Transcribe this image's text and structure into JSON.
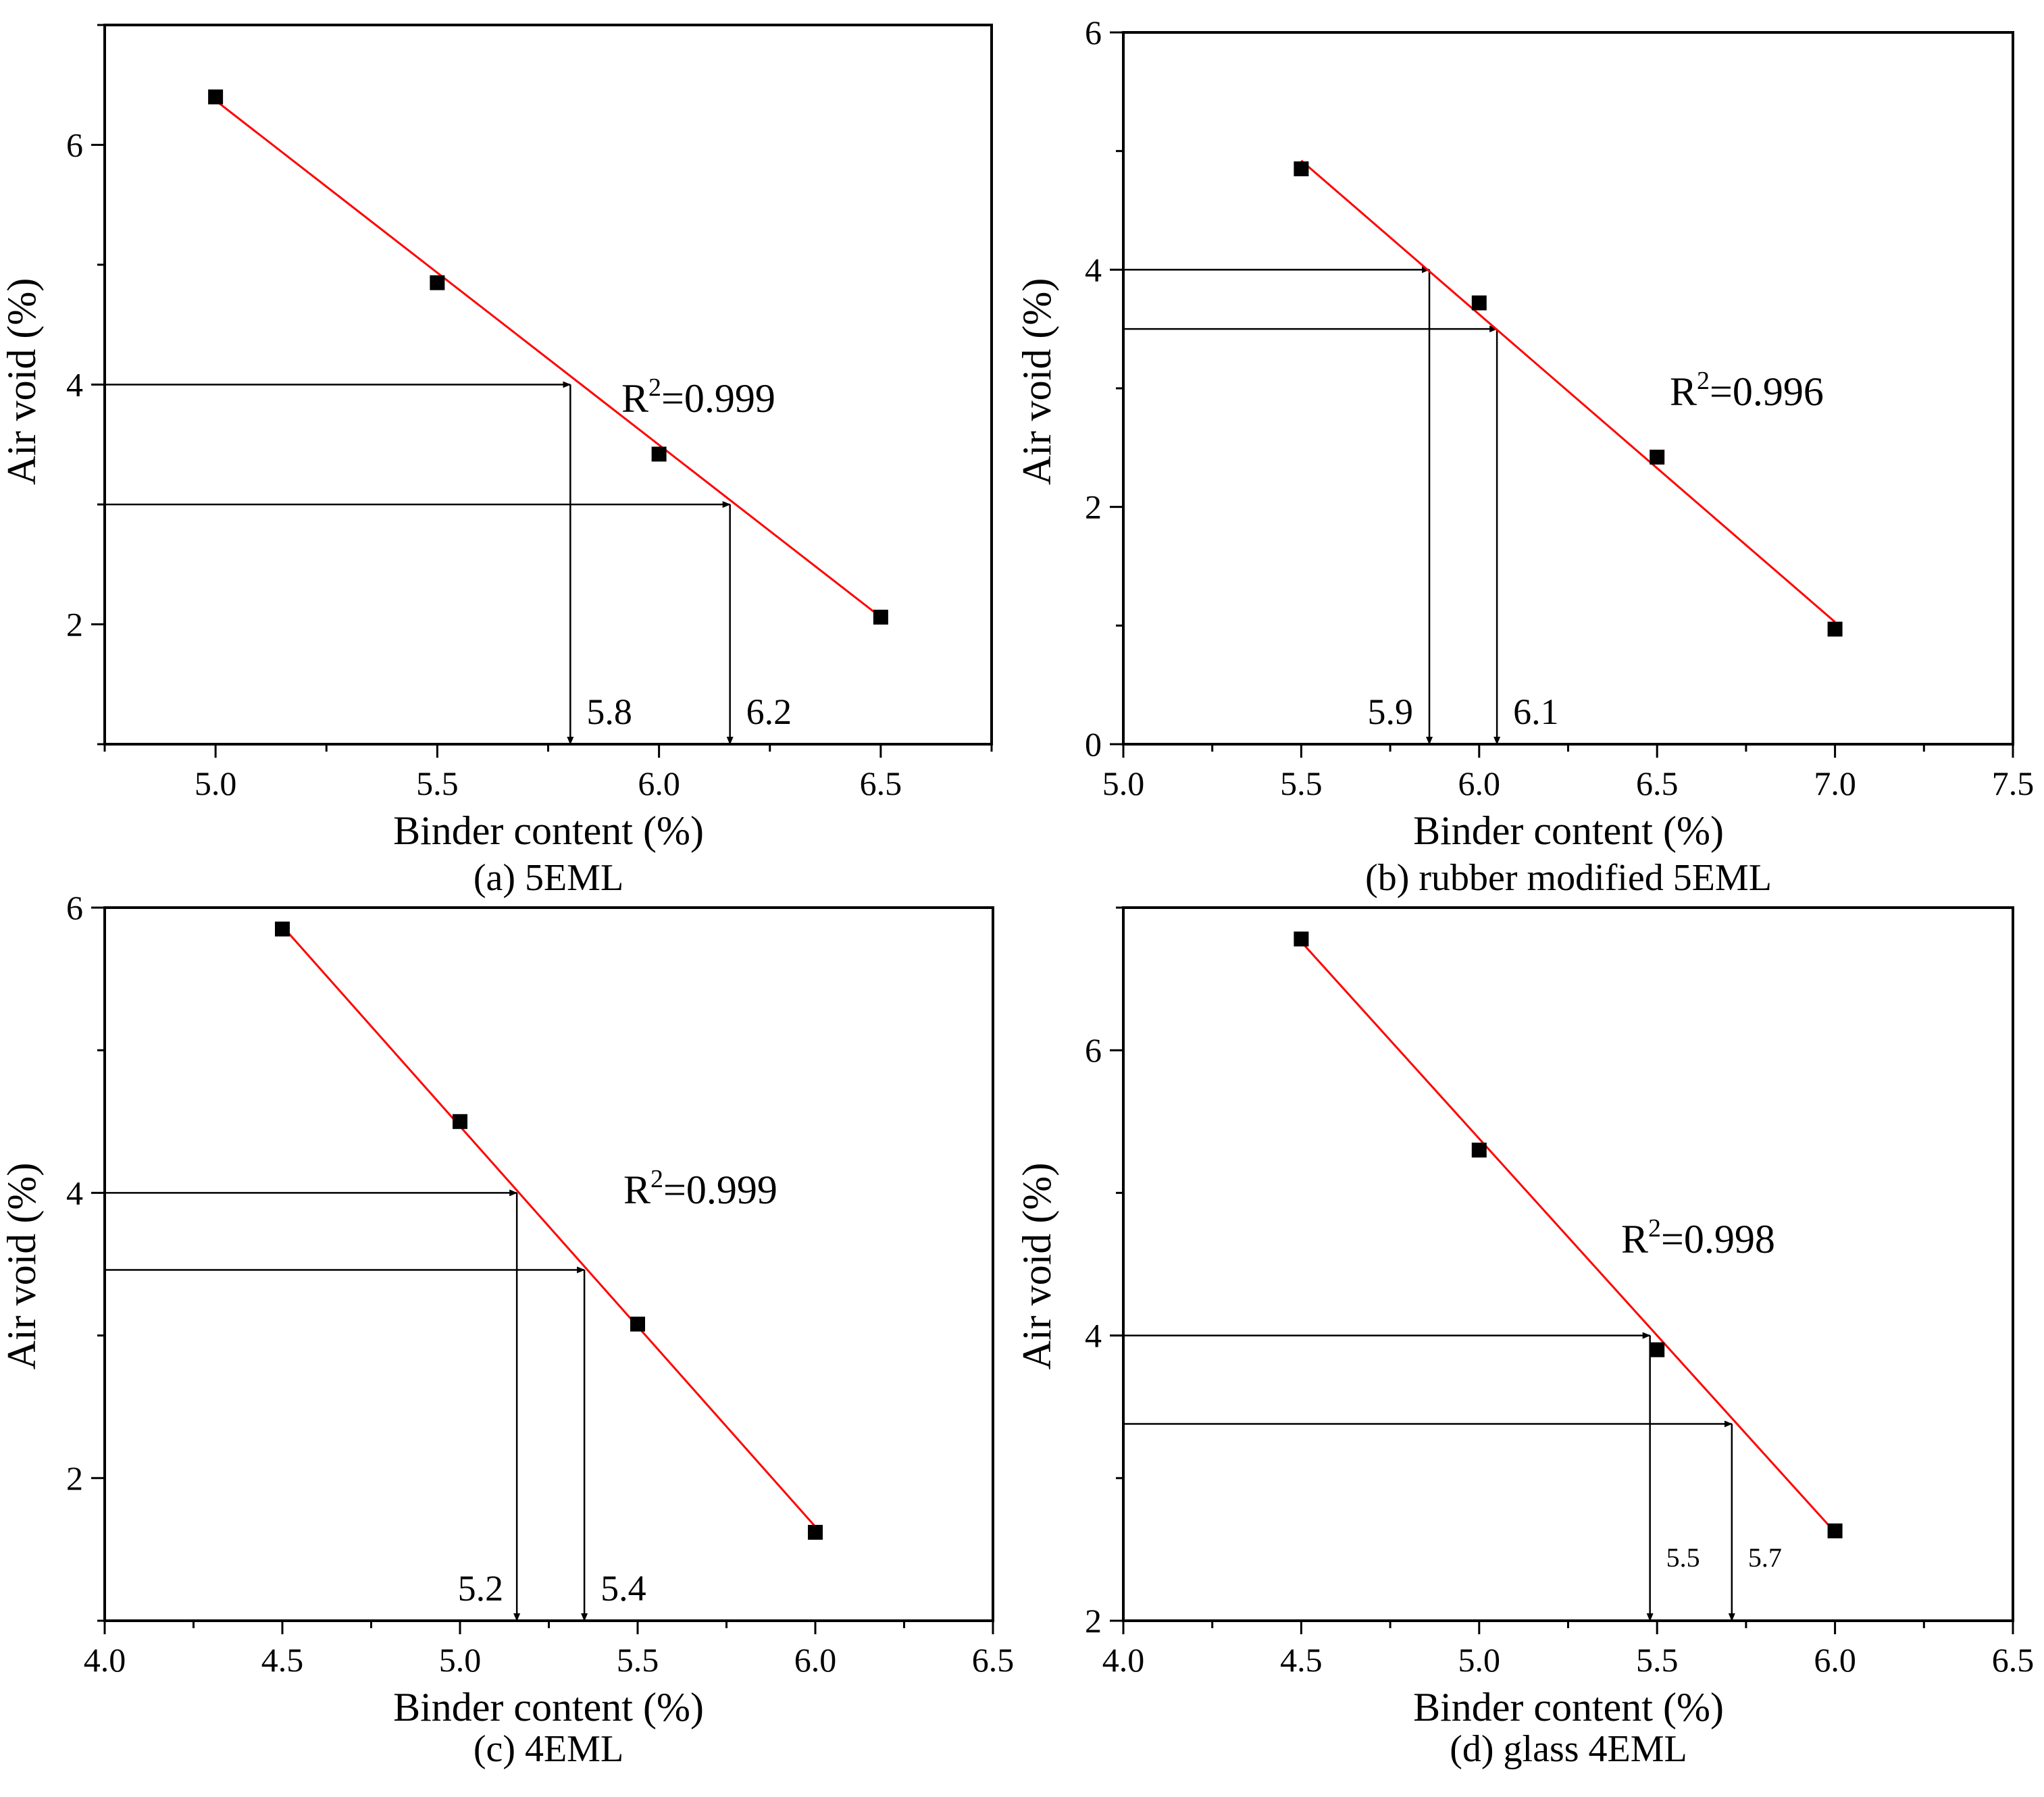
{
  "colors": {
    "fit_line": "#ff0000",
    "marker": "#000000",
    "axes": "#000000",
    "background": "#ffffff"
  },
  "chart_data": [
    {
      "type": "scatter",
      "caption": "(a) 5EML",
      "xlabel": "Binder content (%)",
      "ylabel": "Air void (%)",
      "xlim": [
        4.75,
        6.75
      ],
      "ylim": [
        1.0,
        7.0
      ],
      "xticks": [
        5.0,
        5.5,
        6.0,
        6.5
      ],
      "xtick_labels": [
        "5.0",
        "5.5",
        "6.0",
        "6.5"
      ],
      "yticks": [
        2,
        4,
        6
      ],
      "ytick_labels": [
        "2",
        "4",
        "6"
      ],
      "x": [
        5.0,
        5.5,
        6.0,
        6.5
      ],
      "y": [
        6.4,
        4.85,
        3.42,
        2.06
      ],
      "fit": {
        "x": [
          5.0,
          6.5
        ],
        "y": [
          6.37,
          2.06
        ],
        "r2_prefix": "R",
        "r2_exp": "2",
        "r2_value": "=0.999"
      },
      "annotations": [
        {
          "y": 4.0,
          "x": 5.8,
          "label": "5.8"
        },
        {
          "y": 3.0,
          "x": 6.16,
          "label": "6.2"
        }
      ]
    },
    {
      "type": "scatter",
      "caption": "(b) rubber modified 5EML",
      "xlabel": "Binder content (%)",
      "ylabel": "Air void (%)",
      "xlim": [
        5.0,
        7.5
      ],
      "ylim": [
        0,
        6
      ],
      "xticks": [
        5.0,
        5.5,
        6.0,
        6.5,
        7.0,
        7.5
      ],
      "xtick_labels": [
        "5.0",
        "5.5",
        "6.0",
        "6.5",
        "7.0",
        "7.5"
      ],
      "yticks": [
        0,
        2,
        4,
        6
      ],
      "ytick_labels": [
        "0",
        "2",
        "4",
        "6"
      ],
      "x": [
        5.5,
        6.0,
        6.5,
        7.0
      ],
      "y": [
        4.85,
        3.72,
        2.42,
        0.97
      ],
      "fit": {
        "x": [
          5.5,
          7.0
        ],
        "y": [
          4.92,
          1.03
        ],
        "r2_prefix": "R",
        "r2_exp": "2",
        "r2_value": "=0.996"
      },
      "annotations": [
        {
          "y": 4.0,
          "x": 5.86,
          "label": "5.9"
        },
        {
          "y": 3.5,
          "x": 6.05,
          "label": "6.1"
        }
      ]
    },
    {
      "type": "scatter",
      "caption": "(c) 4EML",
      "xlabel": "Binder content (%)",
      "ylabel": "Air void (%)",
      "xlim": [
        4.0,
        6.5
      ],
      "ylim": [
        1.0,
        6.0
      ],
      "xticks": [
        4.0,
        4.5,
        5.0,
        5.5,
        6.0,
        6.5
      ],
      "xtick_labels": [
        "4.0",
        "4.5",
        "5.0",
        "5.5",
        "6.0",
        "6.5"
      ],
      "yticks": [
        2,
        4,
        6
      ],
      "ytick_labels": [
        "2",
        "4",
        "6"
      ],
      "x": [
        4.5,
        5.0,
        5.5,
        6.0
      ],
      "y": [
        5.85,
        4.5,
        3.08,
        1.62
      ],
      "fit": {
        "x": [
          4.5,
          6.0
        ],
        "y": [
          5.87,
          1.66
        ],
        "r2_prefix": "R",
        "r2_exp": "2",
        "r2_value": "=0.999"
      },
      "annotations": [
        {
          "y": 4.0,
          "x": 5.16,
          "label": "5.2"
        },
        {
          "y": 3.46,
          "x": 5.35,
          "label": "5.4"
        }
      ]
    },
    {
      "type": "scatter",
      "caption": "(d) glass 4EML",
      "xlabel": "Binder content (%)",
      "ylabel": "Air void (%)",
      "xlim": [
        4.0,
        6.5
      ],
      "ylim": [
        2.0,
        7.0
      ],
      "xticks": [
        4.0,
        4.5,
        5.0,
        5.5,
        6.0,
        6.5
      ],
      "xtick_labels": [
        "4.0",
        "4.5",
        "5.0",
        "5.5",
        "6.0",
        "6.5"
      ],
      "yticks": [
        2,
        4,
        6
      ],
      "ytick_labels": [
        "2",
        "4",
        "6"
      ],
      "x": [
        4.5,
        5.0,
        5.5,
        6.0
      ],
      "y": [
        6.78,
        5.3,
        3.9,
        2.63
      ],
      "fit": {
        "x": [
          4.5,
          6.0
        ],
        "y": [
          6.76,
          2.62
        ],
        "r2_prefix": "R",
        "r2_exp": "2",
        "r2_value": "=0.998"
      },
      "annotations": [
        {
          "y": 4.0,
          "x": 5.48,
          "label": "5.5",
          "small": true
        },
        {
          "y": 3.38,
          "x": 5.71,
          "label": "5.7",
          "small": true
        }
      ]
    }
  ]
}
